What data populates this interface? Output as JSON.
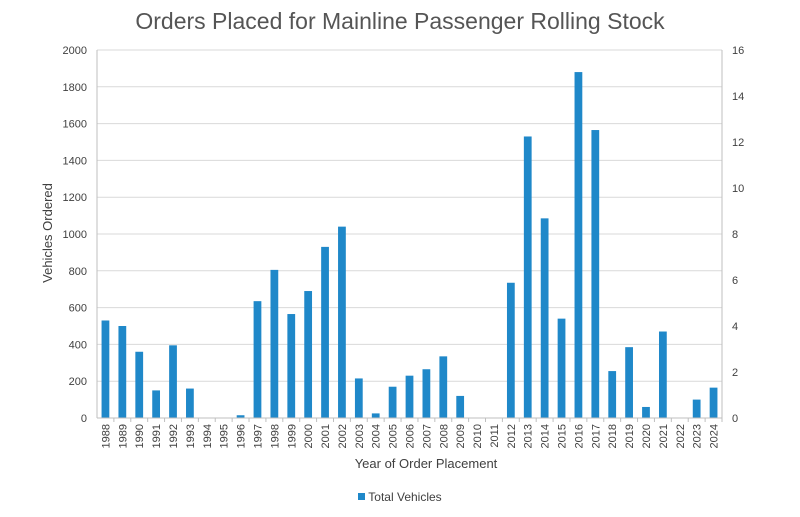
{
  "chart_data": {
    "type": "bar",
    "title": "Orders Placed for Mainline Passenger Rolling Stock",
    "xlabel": "Year of Order Placement",
    "ylabel": "Vehicles Ordered",
    "categories": [
      "1988",
      "1989",
      "1990",
      "1991",
      "1992",
      "1993",
      "1994",
      "1995",
      "1996",
      "1997",
      "1998",
      "1999",
      "2000",
      "2001",
      "2002",
      "2003",
      "2004",
      "2005",
      "2006",
      "2007",
      "2008",
      "2009",
      "2010",
      "2011",
      "2012",
      "2013",
      "2014",
      "2015",
      "2016",
      "2017",
      "2018",
      "2019",
      "2020",
      "2021",
      "2022",
      "2023",
      "2024"
    ],
    "series": [
      {
        "name": "Total Vehicles",
        "color": "#1f88c9",
        "values": [
          530,
          500,
          360,
          150,
          395,
          160,
          0,
          0,
          15,
          635,
          805,
          565,
          690,
          930,
          1040,
          215,
          25,
          170,
          230,
          265,
          335,
          120,
          0,
          0,
          735,
          1530,
          1085,
          540,
          1880,
          1565,
          255,
          385,
          60,
          470,
          0,
          100,
          165
        ]
      }
    ],
    "ylim": [
      0,
      2000
    ],
    "yticks": [
      0,
      200,
      400,
      600,
      800,
      1000,
      1200,
      1400,
      1600,
      1800,
      2000
    ],
    "y2lim": [
      0,
      16
    ],
    "y2ticks": [
      0,
      2,
      4,
      6,
      8,
      10,
      12,
      14,
      16
    ],
    "grid": true,
    "legend": "bottom-center"
  }
}
